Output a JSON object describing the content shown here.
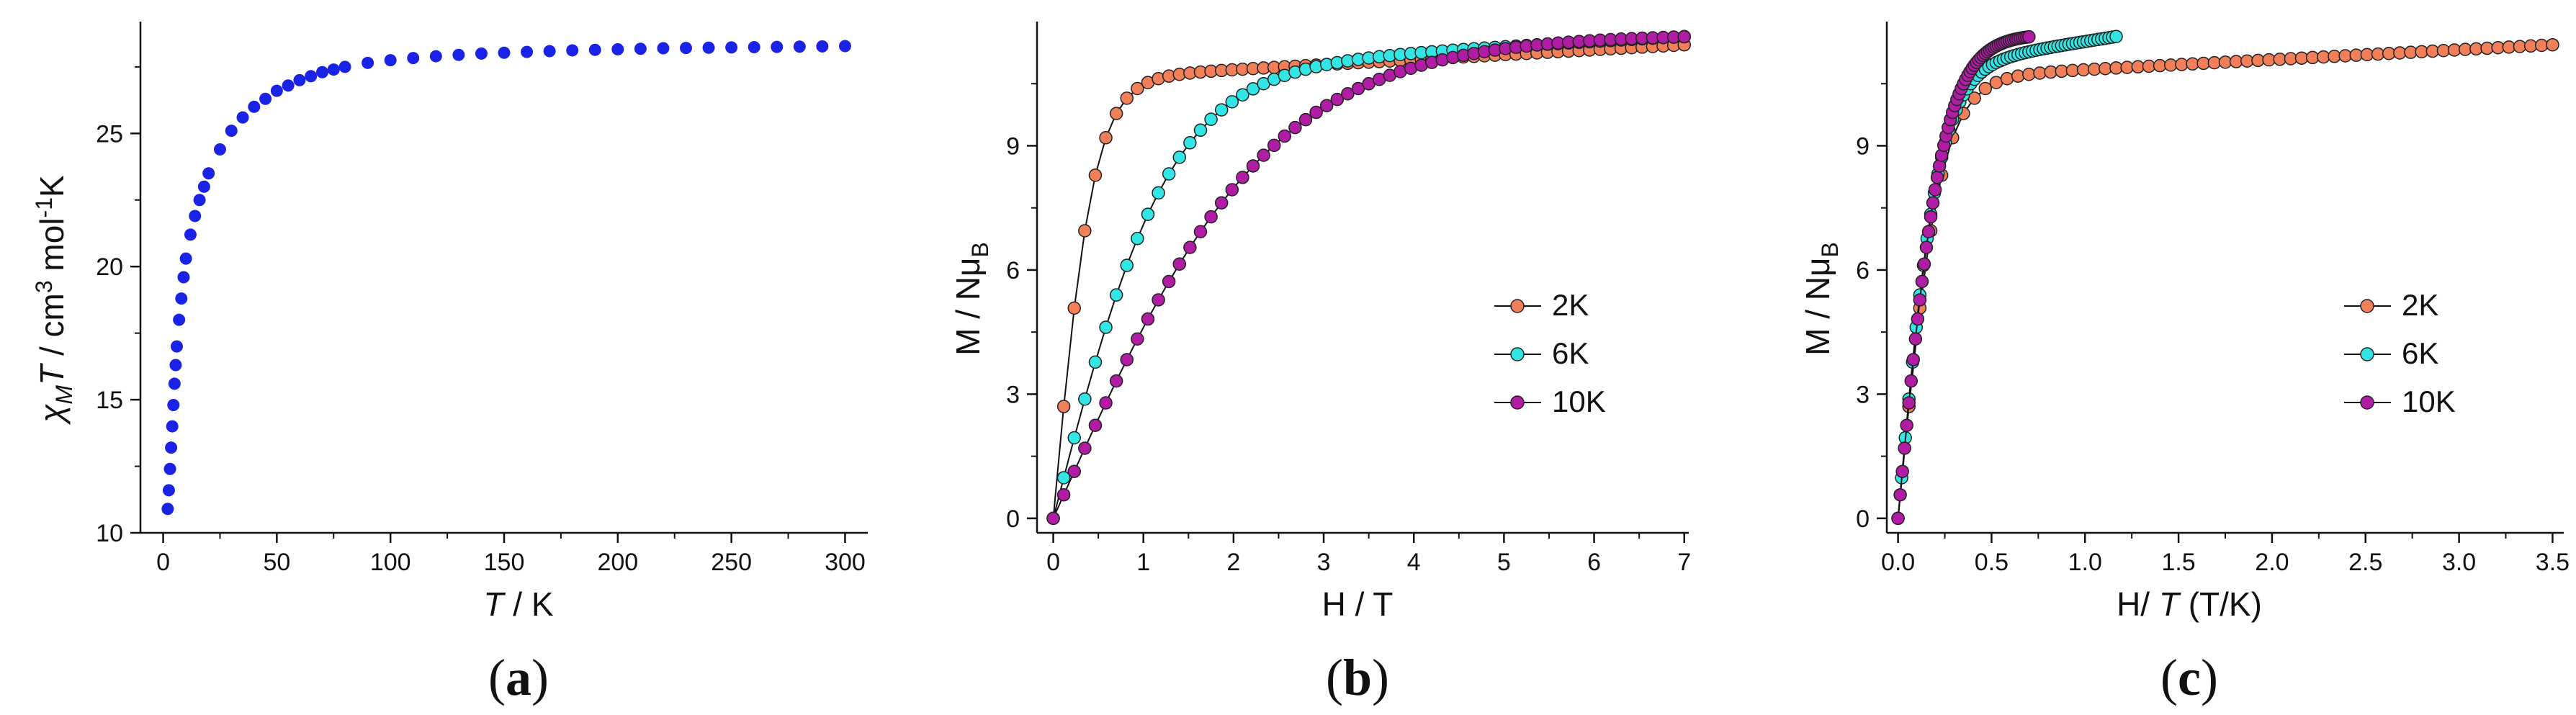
{
  "panels": [
    {
      "id": "a",
      "label_open": "(",
      "label_letter": "a",
      "label_close": ")",
      "chart_data": {
        "type": "scatter",
        "title": "",
        "xlabel_italic": "T",
        "xlabel_rest": " / K",
        "ylabel_chi": "χ",
        "ylabel_sub": "M",
        "ylabel_T": "T",
        "ylabel_mid": " / cm",
        "ylabel_sup3": "3",
        "ylabel_mol": " mol",
        "ylabel_supm1": "-1",
        "ylabel_end": "K",
        "xlim": [
          -10,
          310
        ],
        "ylim": [
          10,
          29.2
        ],
        "xticks": [
          0,
          50,
          100,
          150,
          200,
          250,
          300
        ],
        "xtick_labels": [
          "0",
          "50",
          "100",
          "150",
          "200",
          "250",
          "300"
        ],
        "yticks": [
          10,
          15,
          20,
          25
        ],
        "ytick_labels": [
          "10",
          "15",
          "20",
          "25"
        ],
        "series": [
          {
            "name": "χMT",
            "color": "#1a22e6",
            "x": [
              2,
              2.5,
              3,
              3.5,
              4,
              4.5,
              5,
              5.5,
              6,
              7,
              8,
              9,
              10,
              12,
              14,
              16,
              18,
              20,
              25,
              30,
              35,
              40,
              45,
              50,
              55,
              60,
              65,
              70,
              75,
              80,
              90,
              100,
              110,
              120,
              130,
              140,
              150,
              160,
              170,
              180,
              190,
              200,
              210,
              220,
              230,
              240,
              250,
              260,
              270,
              280,
              290,
              300
            ],
            "y": [
              10.9,
              11.6,
              12.4,
              13.2,
              14.0,
              14.8,
              15.6,
              16.3,
              17.0,
              18.0,
              18.8,
              19.6,
              20.3,
              21.2,
              21.9,
              22.5,
              23.0,
              23.5,
              24.4,
              25.1,
              25.6,
              26.0,
              26.3,
              26.6,
              26.8,
              27.0,
              27.15,
              27.3,
              27.4,
              27.5,
              27.65,
              27.75,
              27.83,
              27.9,
              27.95,
              28.0,
              28.03,
              28.06,
              28.09,
              28.12,
              28.14,
              28.16,
              28.18,
              28.2,
              28.21,
              28.22,
              28.23,
              28.24,
              28.25,
              28.26,
              28.27,
              28.28
            ]
          }
        ]
      }
    },
    {
      "id": "b",
      "label_open": "(",
      "label_letter": "b",
      "label_close": ")",
      "chart_data": {
        "type": "line",
        "title": "",
        "xlabel": "H / T",
        "ylabel_main": "M / Nμ",
        "ylabel_sub": "B",
        "xlim": [
          -0.18,
          7.05
        ],
        "ylim": [
          -0.35,
          12.0
        ],
        "xticks": [
          0,
          1,
          2,
          3,
          4,
          5,
          6,
          7
        ],
        "xtick_labels": [
          "0",
          "1",
          "2",
          "3",
          "4",
          "5",
          "6",
          "7"
        ],
        "yticks": [
          0,
          3,
          6,
          9
        ],
        "ytick_labels": [
          "0",
          "3",
          "6",
          "9"
        ],
        "legend": [
          "2K",
          "6K",
          "10K"
        ],
        "legend_position": "center-right",
        "series": [
          {
            "name": "2K",
            "color": "#f07f5a",
            "Msat": 10.6,
            "h0": 0.45,
            "slope": 0.12,
            "hmax": 7.0
          },
          {
            "name": "6K",
            "color": "#32e6e6",
            "Msat": 10.8,
            "h0": 1.3,
            "slope": 0.12,
            "hmax": 7.0
          },
          {
            "name": "10K",
            "color": "#b01ca3",
            "Msat": 11.7,
            "h0": 2.4,
            "slope": 0.0,
            "hmax": 7.0
          }
        ]
      }
    },
    {
      "id": "c",
      "label_open": "(",
      "label_letter": "c",
      "label_close": ")",
      "chart_data": {
        "type": "line",
        "title": "",
        "xlabel_H": "H/ ",
        "xlabel_T": "T",
        "xlabel_unit": " (T/K)",
        "ylabel_main": "M / Nμ",
        "ylabel_sub": "B",
        "xlim": [
          -0.06,
          3.56
        ],
        "ylim": [
          -0.35,
          12.0
        ],
        "xticks": [
          0.0,
          0.5,
          1.0,
          1.5,
          2.0,
          2.5,
          3.0,
          3.5
        ],
        "xtick_labels": [
          "0.0",
          "0.5",
          "1.0",
          "1.5",
          "2.0",
          "2.5",
          "3.0",
          "3.5"
        ],
        "yticks": [
          0,
          3,
          6,
          9
        ],
        "ytick_labels": [
          "0",
          "3",
          "6",
          "9"
        ],
        "legend": [
          "2K",
          "6K",
          "10K"
        ],
        "legend_position": "center-right",
        "series": [
          {
            "name": "2K",
            "color": "#f07f5a",
            "temperature": 2
          },
          {
            "name": "6K",
            "color": "#32e6e6",
            "temperature": 6
          },
          {
            "name": "10K",
            "color": "#b01ca3",
            "temperature": 10
          }
        ]
      }
    }
  ]
}
